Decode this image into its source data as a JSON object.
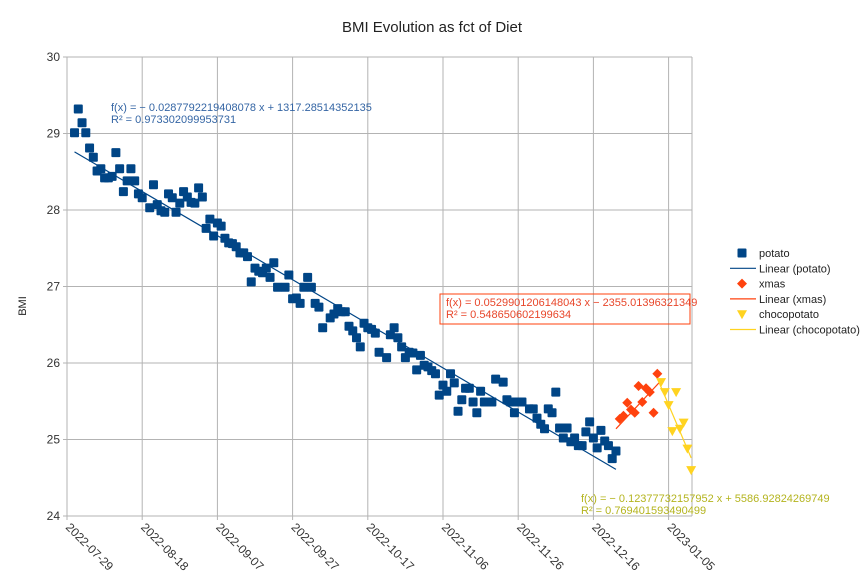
{
  "chart_data": {
    "type": "scatter",
    "title": "BMI Evolution as fct of Diet",
    "xlabel": "",
    "ylabel": "BMI",
    "x_origin_date": "2022-07-29",
    "x_unit": "days since 2022-07-29",
    "xlim": [
      0,
      166
    ],
    "ylim": [
      24,
      30
    ],
    "yticks": [
      24,
      25,
      26,
      27,
      28,
      29,
      30
    ],
    "xticks": [
      {
        "day": 0,
        "label": "2022-07-29"
      },
      {
        "day": 20,
        "label": "2022-08-18"
      },
      {
        "day": 40,
        "label": "2022-09-07"
      },
      {
        "day": 60,
        "label": "2022-09-27"
      },
      {
        "day": 80,
        "label": "2022-10-17"
      },
      {
        "day": 100,
        "label": "2022-11-06"
      },
      {
        "day": 120,
        "label": "2022-11-26"
      },
      {
        "day": 140,
        "label": "2022-12-16"
      },
      {
        "day": 160,
        "label": "2023-01-05"
      }
    ],
    "grid": true,
    "legend_position": "right",
    "series": [
      {
        "name": "potato",
        "color": "#004586",
        "marker": "square",
        "points": [
          [
            2,
            29.01
          ],
          [
            3,
            29.32
          ],
          [
            4,
            29.14
          ],
          [
            5,
            29.01
          ],
          [
            6,
            28.81
          ],
          [
            7,
            28.69
          ],
          [
            8,
            28.51
          ],
          [
            9,
            28.54
          ],
          [
            10,
            28.42
          ],
          [
            11,
            28.42
          ],
          [
            12,
            28.44
          ],
          [
            13,
            28.75
          ],
          [
            14,
            28.54
          ],
          [
            15,
            28.24
          ],
          [
            16,
            28.38
          ],
          [
            17,
            28.54
          ],
          [
            18,
            28.38
          ],
          [
            19,
            28.21
          ],
          [
            20,
            28.16
          ],
          [
            22,
            28.03
          ],
          [
            23,
            28.33
          ],
          [
            24,
            28.07
          ],
          [
            25,
            27.99
          ],
          [
            26,
            27.97
          ],
          [
            27,
            28.21
          ],
          [
            28,
            28.16
          ],
          [
            29,
            27.97
          ],
          [
            30,
            28.09
          ],
          [
            31,
            28.24
          ],
          [
            32,
            28.17
          ],
          [
            33,
            28.1
          ],
          [
            34,
            28.09
          ],
          [
            35,
            28.29
          ],
          [
            36,
            28.17
          ],
          [
            37,
            27.76
          ],
          [
            38,
            27.88
          ],
          [
            39,
            27.66
          ],
          [
            40,
            27.83
          ],
          [
            41,
            27.79
          ],
          [
            42,
            27.63
          ],
          [
            43,
            27.57
          ],
          [
            44,
            27.56
          ],
          [
            45,
            27.52
          ],
          [
            46,
            27.44
          ],
          [
            47,
            27.44
          ],
          [
            48,
            27.39
          ],
          [
            49,
            27.06
          ],
          [
            50,
            27.24
          ],
          [
            51,
            27.2
          ],
          [
            52,
            27.18
          ],
          [
            53,
            27.24
          ],
          [
            54,
            27.12
          ],
          [
            55,
            27.31
          ],
          [
            56,
            26.99
          ],
          [
            58,
            26.99
          ],
          [
            59,
            27.15
          ],
          [
            60,
            26.84
          ],
          [
            61,
            26.85
          ],
          [
            62,
            26.78
          ],
          [
            63,
            26.99
          ],
          [
            64,
            27.12
          ],
          [
            65,
            26.99
          ],
          [
            66,
            26.78
          ],
          [
            67,
            26.73
          ],
          [
            68,
            26.46
          ],
          [
            70,
            26.59
          ],
          [
            71,
            26.64
          ],
          [
            72,
            26.71
          ],
          [
            73,
            26.67
          ],
          [
            74,
            26.67
          ],
          [
            75,
            26.48
          ],
          [
            76,
            26.42
          ],
          [
            77,
            26.33
          ],
          [
            78,
            26.21
          ],
          [
            79,
            26.52
          ],
          [
            80,
            26.46
          ],
          [
            81,
            26.44
          ],
          [
            82,
            26.39
          ],
          [
            83,
            26.14
          ],
          [
            85,
            26.07
          ],
          [
            86,
            26.37
          ],
          [
            87,
            26.46
          ],
          [
            88,
            26.33
          ],
          [
            89,
            26.21
          ],
          [
            90,
            26.07
          ],
          [
            91,
            26.14
          ],
          [
            92,
            26.13
          ],
          [
            93,
            25.91
          ],
          [
            94,
            26.1
          ],
          [
            95,
            25.97
          ],
          [
            96,
            25.95
          ],
          [
            97,
            25.9
          ],
          [
            98,
            25.86
          ],
          [
            99,
            25.58
          ],
          [
            100,
            25.71
          ],
          [
            101,
            25.63
          ],
          [
            102,
            25.86
          ],
          [
            103,
            25.74
          ],
          [
            104,
            25.37
          ],
          [
            105,
            25.52
          ],
          [
            106,
            25.67
          ],
          [
            107,
            25.67
          ],
          [
            108,
            25.49
          ],
          [
            109,
            25.35
          ],
          [
            110,
            25.63
          ],
          [
            111,
            25.49
          ],
          [
            113,
            25.49
          ],
          [
            114,
            25.79
          ],
          [
            116,
            25.75
          ],
          [
            117,
            25.52
          ],
          [
            118,
            25.49
          ],
          [
            119,
            25.35
          ],
          [
            120,
            25.49
          ],
          [
            121,
            25.49
          ],
          [
            123,
            25.4
          ],
          [
            124,
            25.4
          ],
          [
            125,
            25.28
          ],
          [
            126,
            25.2
          ],
          [
            127,
            25.14
          ],
          [
            128,
            25.4
          ],
          [
            129,
            25.35
          ],
          [
            130,
            25.62
          ],
          [
            131,
            25.15
          ],
          [
            132,
            25.02
          ],
          [
            133,
            25.15
          ],
          [
            134,
            24.97
          ],
          [
            135,
            25.02
          ],
          [
            136,
            24.92
          ],
          [
            137,
            24.92
          ],
          [
            138,
            25.1
          ],
          [
            139,
            25.23
          ],
          [
            140,
            25.02
          ],
          [
            141,
            24.89
          ],
          [
            142,
            25.12
          ],
          [
            143,
            24.98
          ],
          [
            144,
            24.92
          ],
          [
            145,
            24.75
          ],
          [
            146,
            24.85
          ]
        ]
      },
      {
        "name": "xmas",
        "color": "#ff420e",
        "marker": "diamond",
        "points": [
          [
            147,
            25.27
          ],
          [
            148,
            25.31
          ],
          [
            149,
            25.48
          ],
          [
            150,
            25.39
          ],
          [
            151,
            25.35
          ],
          [
            152,
            25.7
          ],
          [
            153,
            25.49
          ],
          [
            154,
            25.67
          ],
          [
            155,
            25.62
          ],
          [
            156,
            25.35
          ],
          [
            157,
            25.86
          ]
        ]
      },
      {
        "name": "chocopotato",
        "color": "#ffd320",
        "marker": "triangle-down",
        "points": [
          [
            158,
            25.75
          ],
          [
            159,
            25.62
          ],
          [
            160,
            25.45
          ],
          [
            161,
            25.11
          ],
          [
            162,
            25.62
          ],
          [
            163,
            25.14
          ],
          [
            164,
            25.22
          ],
          [
            165,
            24.88
          ],
          [
            166,
            24.6
          ]
        ]
      }
    ],
    "trendlines": [
      {
        "name": "Linear (potato)",
        "color": "#004586",
        "from": [
          2,
          28.76
        ],
        "to": [
          146,
          24.61
        ],
        "equation": "f(x) = − 0.0287792219408078 x + 1317.28514352135",
        "r2": "R² = 0.973302099953731",
        "label_color": "#3465a4",
        "boxed": false
      },
      {
        "name": "Linear (xmas)",
        "color": "#ff420e",
        "from": [
          146,
          25.14
        ],
        "to": [
          158,
          25.77
        ],
        "equation": "f(x) = 0.0529901206148043 x − 2355.01396321349",
        "r2": "R² = 0.548650602199634",
        "label_color": "#e8462a",
        "boxed": true
      },
      {
        "name": "Linear (chocopotato)",
        "color": "#ffd320",
        "from": [
          157,
          25.8
        ],
        "to": [
          166,
          24.76
        ],
        "equation": "f(x) = − 0.12377732157952 x + 5586.92824269749",
        "r2": "R² = 0.769401593490499",
        "label_color": "#b4b41e",
        "boxed": false
      }
    ],
    "legend": [
      {
        "label": "potato",
        "kind": "marker",
        "marker": "square",
        "color": "#004586"
      },
      {
        "label": "Linear (potato)",
        "kind": "line",
        "color": "#004586"
      },
      {
        "label": "xmas",
        "kind": "marker",
        "marker": "diamond",
        "color": "#ff420e"
      },
      {
        "label": "Linear (xmas)",
        "kind": "line",
        "color": "#ff420e"
      },
      {
        "label": "chocopotato",
        "kind": "marker",
        "marker": "triangle-down",
        "color": "#ffd320"
      },
      {
        "label": "Linear (chocopotato)",
        "kind": "line",
        "color": "#ffd320"
      }
    ]
  }
}
